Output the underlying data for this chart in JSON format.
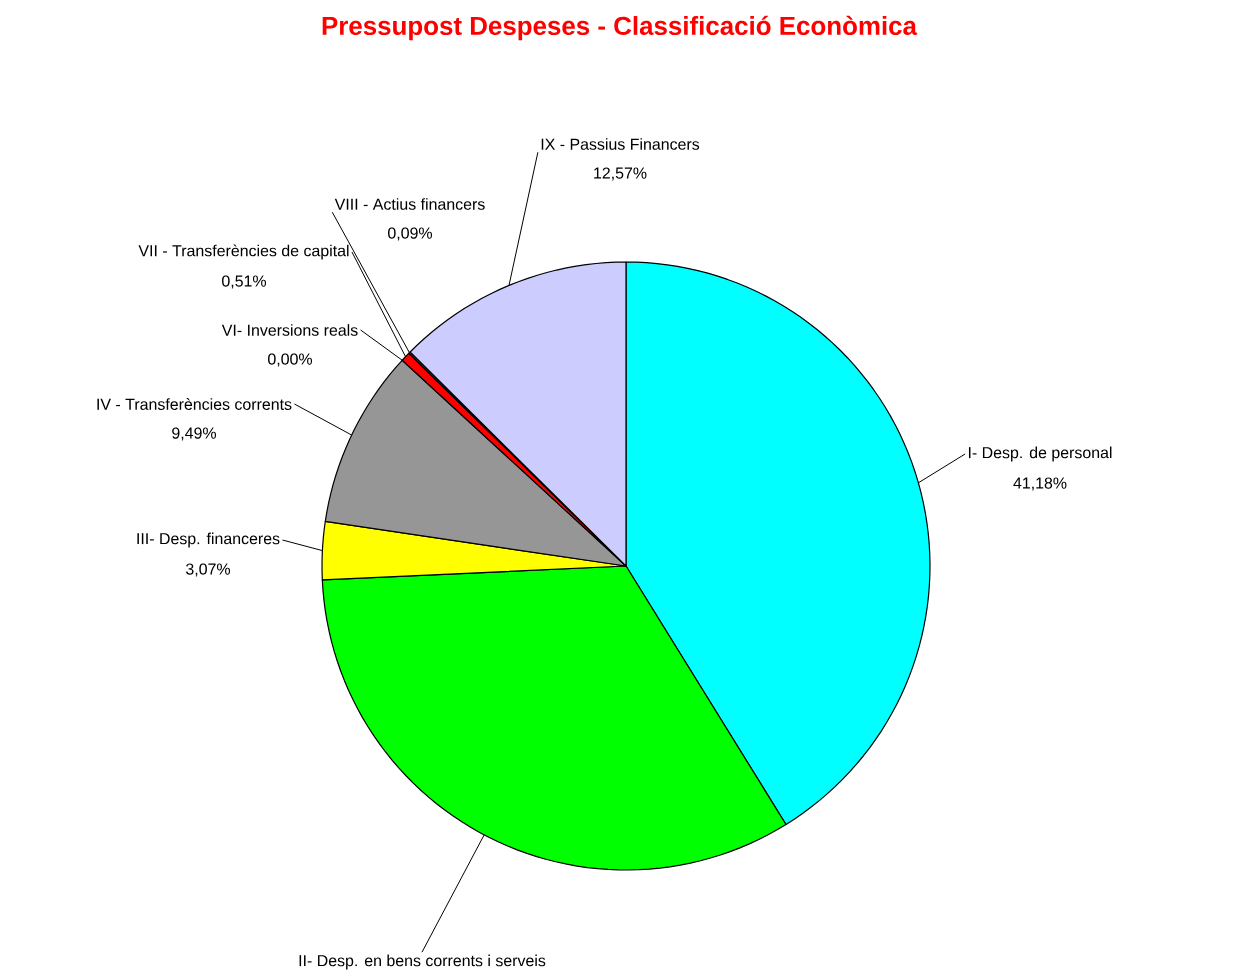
{
  "chart_data": {
    "type": "pie",
    "title": "Pressupost Despeses - Classificació Econòmica",
    "categories": [
      "I- Desp. de personal",
      "II- Desp. en bens corrents i serveis",
      "III- Desp. financeres",
      "IV - Transferències corrents",
      "VI- Inversions reals",
      "VII - Transferències de capital",
      "VIII - Actius financers",
      "IX - Passius Financers"
    ],
    "values": [
      41.18,
      33.09,
      3.07,
      9.49,
      0.0,
      0.51,
      0.09,
      12.57
    ],
    "value_labels": [
      "41,18%",
      null,
      "3,07%",
      "9,49%",
      "0,00%",
      "0,51%",
      "0,09%",
      "12,57%"
    ],
    "colors": [
      "#00ffff",
      "#00ff00",
      "#ffff00",
      "#969696",
      "#000000",
      "#ff0000",
      "#3366ff",
      "#ccccff"
    ]
  }
}
